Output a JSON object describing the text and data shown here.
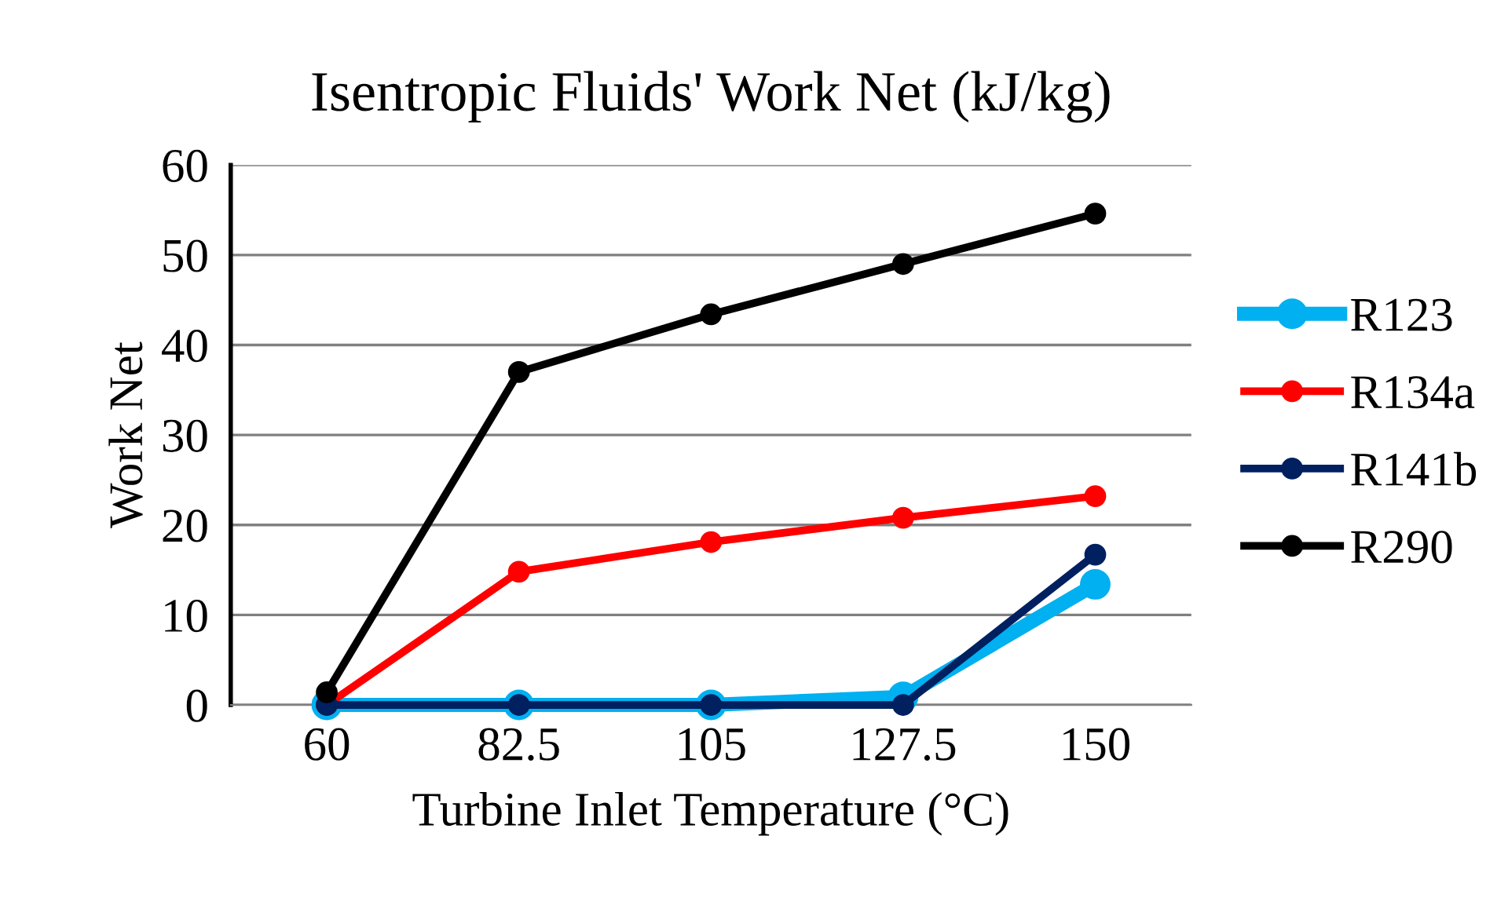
{
  "chart_data": {
    "type": "line",
    "title": "Isentropic Fluids' Work Net (kJ/kg)",
    "xlabel": "Turbine Inlet Temperature (°C)",
    "ylabel": "Work Net",
    "categories": [
      "60",
      "82.5",
      "105",
      "127.5",
      "150"
    ],
    "series": [
      {
        "name": "R123",
        "color": "#00b0f0",
        "values": [
          0,
          0,
          0,
          0.9,
          13.4
        ]
      },
      {
        "name": "R134a",
        "color": "#ff0000",
        "values": [
          0,
          14.8,
          18.1,
          20.8,
          23.2
        ]
      },
      {
        "name": "R141b",
        "color": "#002060",
        "values": [
          0,
          0,
          0,
          0,
          16.7
        ]
      },
      {
        "name": "R290",
        "color": "#000000",
        "values": [
          1.4,
          37.0,
          43.4,
          49.0,
          54.6
        ]
      }
    ],
    "ylim": [
      0,
      60
    ],
    "yticks": [
      0,
      10,
      20,
      30,
      40,
      50,
      60
    ],
    "grid": "y",
    "legend": "right",
    "marker": "circle",
    "line_style": "solid"
  }
}
